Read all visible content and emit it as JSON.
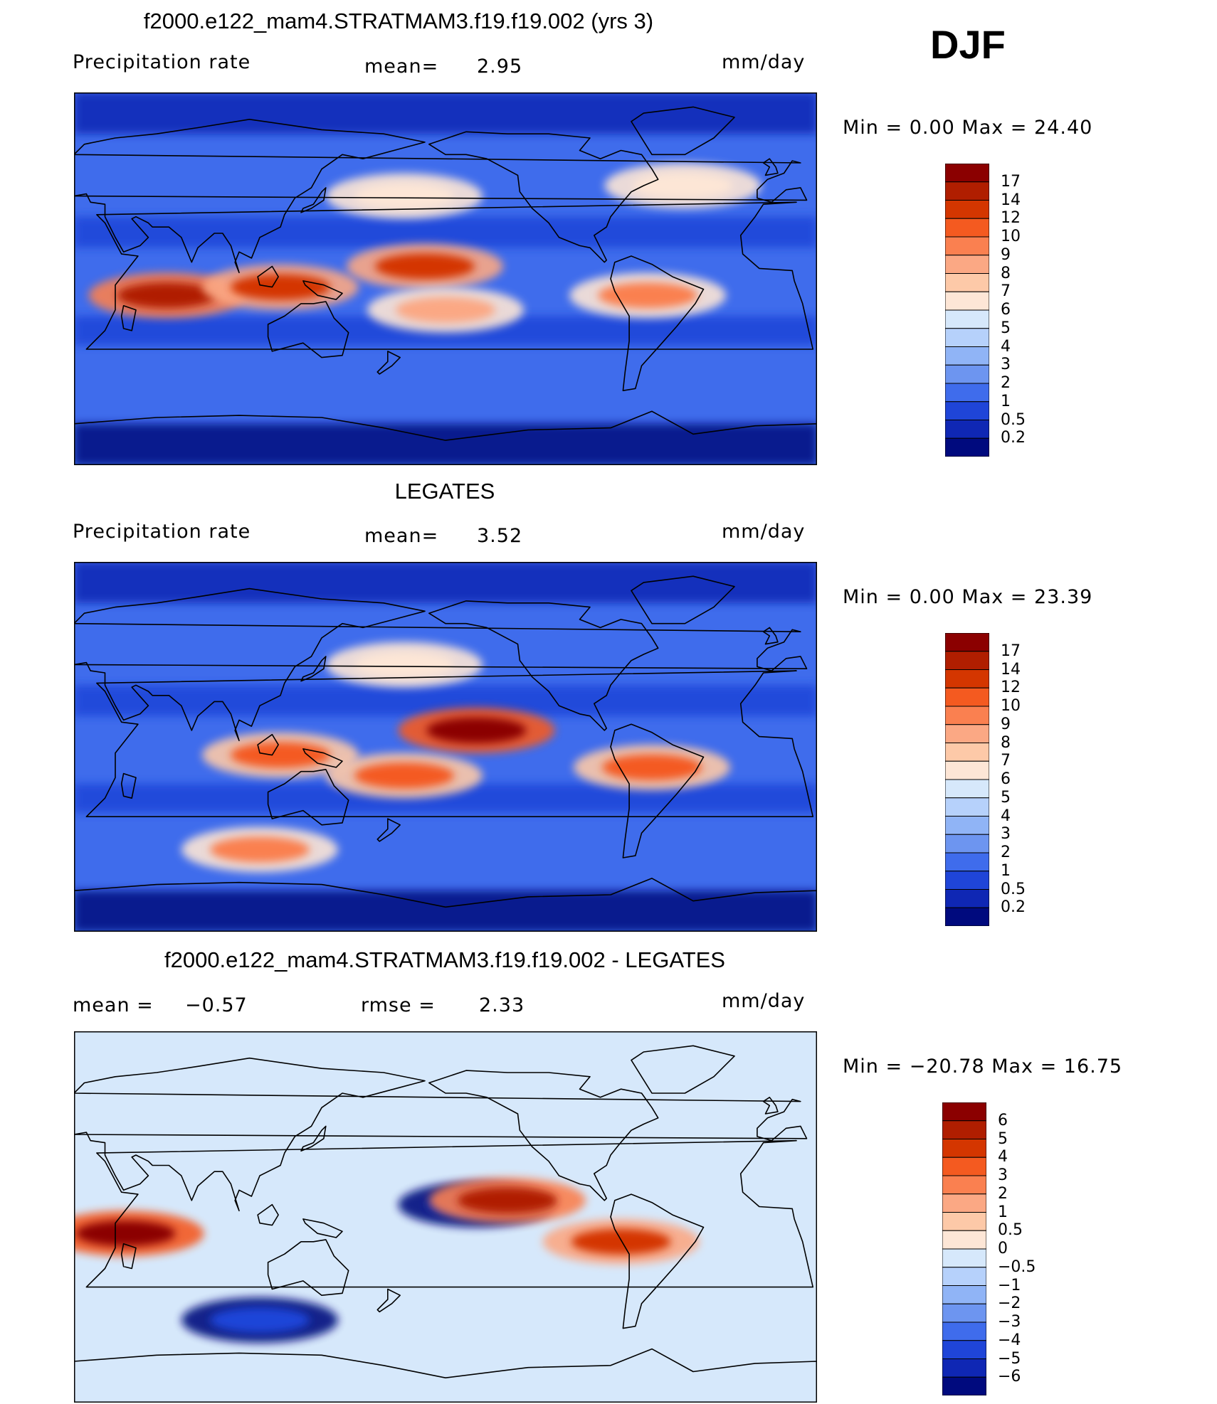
{
  "figure": {
    "season": "DJF"
  },
  "panels": [
    {
      "title": "f2000.e122_mam4.STRATMAM3.f19.f19.002 (yrs 3)",
      "left_label": "Precipitation  rate",
      "center_label": "mean=",
      "center_value": "2.95",
      "units": "mm/day",
      "minmax": "Min  =    0.00  Max  =    24.40"
    },
    {
      "title": "LEGATES",
      "left_label": "Precipitation  rate",
      "center_label": "mean=",
      "center_value": "3.52",
      "units": "mm/day",
      "minmax": "Min  =    0.00  Max  =    23.39"
    },
    {
      "title": "f2000.e122_mam4.STRATMAM3.f19.f19.002 - LEGATES",
      "left_label": "mean  =",
      "left_value": "−0.57",
      "center_label": "rmse  =",
      "center_value": "2.33",
      "units": "mm/day",
      "minmax": "Min  = −20.78  Max  =    16.75"
    }
  ],
  "chart_data": [
    {
      "type": "heatmap",
      "title": "f2000.e122_mam4.STRATMAM3.f19.f19.002 (yrs 3)",
      "variable": "Precipitation rate",
      "units": "mm/day",
      "mean": 2.95,
      "min": 0.0,
      "max": 24.4,
      "levels": [
        "17",
        "14",
        "12",
        "10",
        "9",
        "8",
        "7",
        "6",
        "5",
        "4",
        "3",
        "2",
        "1",
        "0.5",
        "0.2"
      ],
      "colors": [
        "#8b0000",
        "#b01e00",
        "#d43600",
        "#f45a20",
        "#fa8050",
        "#fba884",
        "#fdc9a8",
        "#fde6d6",
        "#d6e8fb",
        "#b6d1fb",
        "#90b4f6",
        "#6d95f0",
        "#3f6cec",
        "#1f45d8",
        "#0f27b4",
        "#000a7e"
      ],
      "features": [
        {
          "name": "itcz-pacific",
          "lon": 190,
          "lat": 6,
          "value": 12
        },
        {
          "name": "indian-ocean-south",
          "lon": 65,
          "lat": -8,
          "value": 14
        },
        {
          "name": "maritime-continent",
          "lon": 120,
          "lat": -4,
          "value": 12
        },
        {
          "name": "spcz",
          "lon": 200,
          "lat": -15,
          "value": 8
        },
        {
          "name": "amazon",
          "lon": 298,
          "lat": -8,
          "value": 9
        },
        {
          "name": "north-pacific-storm-track",
          "lon": 180,
          "lat": 40,
          "value": 6
        },
        {
          "name": "north-atlantic-storm-track",
          "lon": 315,
          "lat": 45,
          "value": 6
        }
      ]
    },
    {
      "type": "heatmap",
      "title": "LEGATES",
      "variable": "Precipitation rate",
      "units": "mm/day",
      "mean": 3.52,
      "min": 0.0,
      "max": 23.39,
      "levels": [
        "17",
        "14",
        "12",
        "10",
        "9",
        "8",
        "7",
        "6",
        "5",
        "4",
        "3",
        "2",
        "1",
        "0.5",
        "0.2"
      ],
      "colors": [
        "#8b0000",
        "#b01e00",
        "#d43600",
        "#f45a20",
        "#fa8050",
        "#fba884",
        "#fdc9a8",
        "#fde6d6",
        "#d6e8fb",
        "#b6d1fb",
        "#90b4f6",
        "#6d95f0",
        "#3f6cec",
        "#1f45d8",
        "#0f27b4",
        "#000a7e"
      ],
      "features": [
        {
          "name": "itcz-pacific",
          "lon": 215,
          "lat": 8,
          "value": 17
        },
        {
          "name": "maritime-continent",
          "lon": 120,
          "lat": -4,
          "value": 10
        },
        {
          "name": "spcz",
          "lon": 180,
          "lat": -14,
          "value": 10
        },
        {
          "name": "amazon",
          "lon": 300,
          "lat": -10,
          "value": 10
        },
        {
          "name": "southern-ocean-band",
          "lon": 110,
          "lat": -50,
          "value": 9
        },
        {
          "name": "north-pacific-storm-track",
          "lon": 180,
          "lat": 40,
          "value": 6
        }
      ]
    },
    {
      "type": "heatmap",
      "title": "f2000.e122_mam4.STRATMAM3.f19.f19.002 - LEGATES",
      "units": "mm/day",
      "mean": -0.57,
      "rmse": 2.33,
      "min": -20.78,
      "max": 16.75,
      "levels": [
        "6",
        "5",
        "4",
        "3",
        "2",
        "1",
        "0.5",
        "0",
        "−0.5",
        "−1",
        "−2",
        "−3",
        "−4",
        "−5",
        "−6"
      ],
      "colors": [
        "#8b0000",
        "#b01e00",
        "#d43600",
        "#f45a20",
        "#fa8050",
        "#fba884",
        "#fdc9a8",
        "#fde6d6",
        "#d6e8fb",
        "#b6d1fb",
        "#90b4f6",
        "#6d95f0",
        "#3f6cec",
        "#1f45d8",
        "#0f27b4",
        "#000a7e"
      ],
      "features": [
        {
          "name": "east-africa-wet-bias",
          "lon": 45,
          "lat": -8,
          "value": 6
        },
        {
          "name": "pacific-itcz-dry-bias",
          "lon": 215,
          "lat": 6,
          "value": -6
        },
        {
          "name": "andes-wet-bias",
          "lon": 285,
          "lat": -12,
          "value": 4
        },
        {
          "name": "southern-ocean-dry-band",
          "lon": 110,
          "lat": -50,
          "value": -5
        },
        {
          "name": "west-pacific-wet-bias",
          "lon": 230,
          "lat": 8,
          "value": 5
        }
      ]
    }
  ]
}
